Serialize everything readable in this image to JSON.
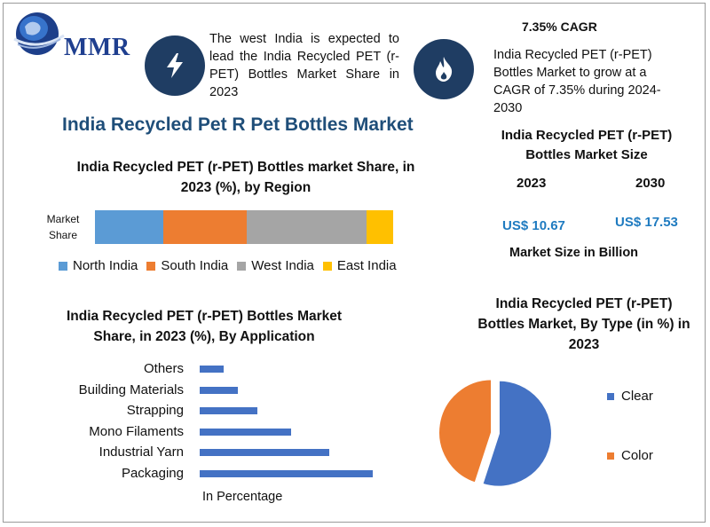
{
  "colors": {
    "north": "#5b9bd5",
    "south": "#ed7d31",
    "west": "#a5a5a5",
    "east": "#ffc000",
    "blue_bar": "#4472c4",
    "clear": "#4472c4",
    "color": "#ed7d31",
    "navy": "#1f3d63",
    "title": "#1f4e79",
    "money": "#1f7bc0"
  },
  "logo": {
    "text": "MMR",
    "icon": "globe-icon"
  },
  "info1": {
    "icon": "lightning-icon",
    "text": "The west India is expected to lead the India Recycled PET (r-PET) Bottles Market Share in 2023"
  },
  "info2": {
    "icon": "flame-icon",
    "heading": "7.35% CAGR",
    "text": "India Recycled PET (r-PET) Bottles Market to grow at a CAGR of 7.35% during 2024-2030"
  },
  "main_title": "India Recycled Pet R Pet Bottles Market",
  "market_size": {
    "title": "India Recycled PET (r-PET) Bottles Market Size",
    "years": [
      "2023",
      "2030"
    ],
    "values": [
      "US$ 10.67",
      "US$ 17.53"
    ],
    "caption": "Market Size in Billion"
  },
  "chart_data": [
    {
      "type": "bar",
      "orientation": "horizontal-stacked",
      "title": "India Recycled PET (r-PET) Bottles market Share, in 2023 (%), by Region",
      "category_label": "Market Share",
      "series": [
        {
          "name": "North India",
          "value": 23
        },
        {
          "name": "South India",
          "value": 28
        },
        {
          "name": "West India",
          "value": 40
        },
        {
          "name": "East India",
          "value": 9
        }
      ],
      "xlim": [
        0,
        100
      ]
    },
    {
      "type": "bar",
      "orientation": "horizontal",
      "title": "India Recycled PET (r-PET) Bottles Market Share, in 2023 (%), By Application",
      "categories": [
        "Others",
        "Building Materials",
        "Strapping",
        "Mono Filaments",
        "Industrial Yarn",
        "Packaging"
      ],
      "values": [
        5,
        8,
        12,
        19,
        27,
        36
      ],
      "xlabel": "In Percentage",
      "xlim": [
        0,
        40
      ]
    },
    {
      "type": "pie",
      "title": "India Recycled PET (r-PET) Bottles Market, By Type (in %) in 2023",
      "labels": [
        "Clear",
        "Color"
      ],
      "values": [
        55,
        45
      ]
    }
  ]
}
